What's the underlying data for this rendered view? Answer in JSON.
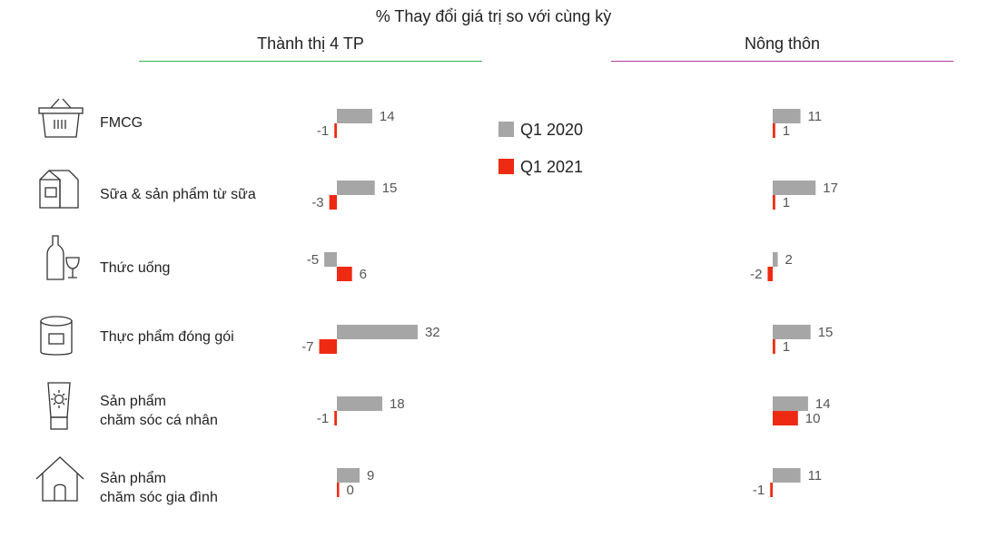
{
  "title": "% Thay đổi giá trị so với cùng kỳ",
  "colors": {
    "q1_2020": "#a6a6a6",
    "q1_2021": "#ee2a12",
    "urban_rule": "#2db34a",
    "rural_rule": "#b03a9a"
  },
  "legend": [
    {
      "label": "Q1 2020",
      "color": "#a6a6a6"
    },
    {
      "label": "Q1 2021",
      "color": "#ee2a12"
    }
  ],
  "categories": [
    {
      "label": "FMCG",
      "icon": "basket-icon"
    },
    {
      "label": "Sữa & sản phẩm từ sữa",
      "icon": "milk-carton-icon"
    },
    {
      "label": "Thức uống",
      "icon": "bottle-glass-icon"
    },
    {
      "label": "Thực phẩm đóng gói",
      "icon": "packaged-food-can-icon"
    },
    {
      "label": "Sản phẩm\nchăm sóc cá nhân",
      "icon": "sunscreen-tube-icon"
    },
    {
      "label": "Sản phẩm\nchăm sóc gia đình",
      "icon": "house-icon"
    }
  ],
  "chart_data": [
    {
      "type": "bar",
      "title": "Thành thị 4 TP",
      "categories": [
        "FMCG",
        "Sữa & sản phẩm từ sữa",
        "Thức uống",
        "Thực phẩm đóng gói",
        "Sản phẩm chăm sóc cá nhân",
        "Sản phẩm chăm sóc gia đình"
      ],
      "series": [
        {
          "name": "Q1 2020",
          "values": [
            14,
            15,
            -5,
            32,
            18,
            9
          ]
        },
        {
          "name": "Q1 2021",
          "values": [
            -1,
            -3,
            6,
            -7,
            -1,
            0
          ]
        }
      ],
      "orientation": "horizontal"
    },
    {
      "type": "bar",
      "title": "Nông thôn",
      "categories": [
        "FMCG",
        "Sữa & sản phẩm từ sữa",
        "Thức uống",
        "Thực phẩm đóng gói",
        "Sản phẩm chăm sóc cá nhân",
        "Sản phẩm chăm sóc gia đình"
      ],
      "series": [
        {
          "name": "Q1 2020",
          "values": [
            11,
            17,
            2,
            15,
            14,
            11
          ]
        },
        {
          "name": "Q1 2021",
          "values": [
            1,
            1,
            -2,
            1,
            10,
            -1
          ]
        }
      ],
      "orientation": "horizontal"
    }
  ]
}
